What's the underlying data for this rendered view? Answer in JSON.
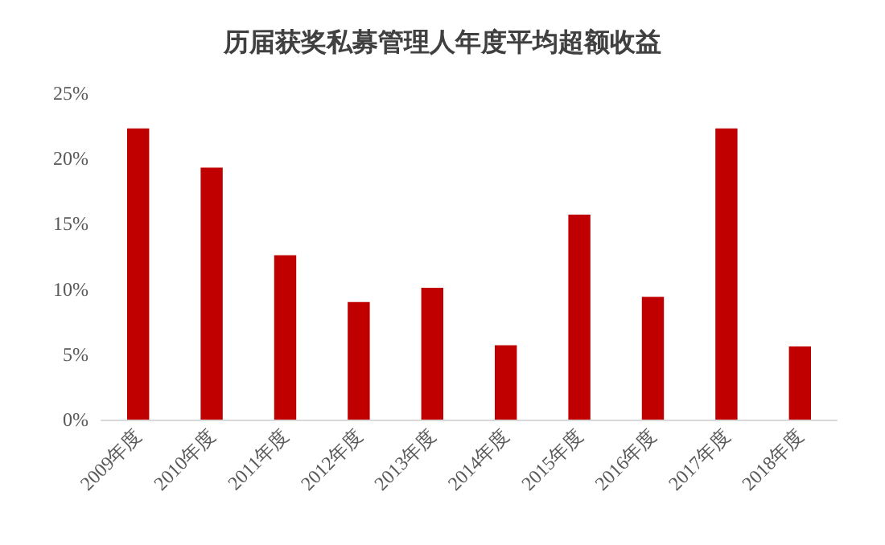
{
  "chart_data": {
    "type": "bar",
    "title": "历届获奖私募管理人年度平均超额收益",
    "categories": [
      "2009年度",
      "2010年度",
      "2011年度",
      "2012年度",
      "2013年度",
      "2014年度",
      "2015年度",
      "2016年度",
      "2017年度",
      "2018年度"
    ],
    "values": [
      22.3,
      19.3,
      12.6,
      9.0,
      10.1,
      5.7,
      15.7,
      9.4,
      22.3,
      5.6
    ],
    "color": "#c00000",
    "ylim": [
      0,
      25
    ],
    "yticks": [
      {
        "value": 0,
        "label": "0%"
      },
      {
        "value": 5,
        "label": "5%"
      },
      {
        "value": 10,
        "label": "10%"
      },
      {
        "value": 15,
        "label": "15%"
      },
      {
        "value": 20,
        "label": "20%"
      },
      {
        "value": 25,
        "label": "25%"
      }
    ],
    "grid": false
  }
}
